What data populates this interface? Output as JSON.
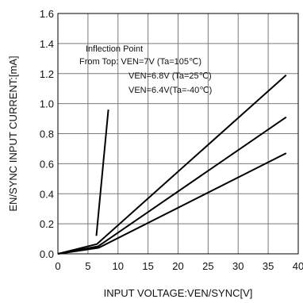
{
  "chart_data": {
    "type": "line",
    "xlabel": "INPUT VOLTAGE:VEN/SYNC[V]",
    "ylabel": "EN/SYNC INPUT CURRENT:[mA]",
    "xlim": [
      0,
      40
    ],
    "ylim": [
      0,
      1.6
    ],
    "xticks": [
      "0",
      "5",
      "10",
      "15",
      "20",
      "25",
      "30",
      "35",
      "40"
    ],
    "yticks": [
      "0.0",
      "0.2",
      "0.4",
      "0.6",
      "0.8",
      "1.0",
      "1.2",
      "1.4",
      "1.6"
    ],
    "grid": true,
    "series": [
      {
        "x": [
          0,
          6.5,
          38
        ],
        "y": [
          0,
          0.065,
          1.19
        ]
      },
      {
        "x": [
          0,
          6.7,
          38
        ],
        "y": [
          0,
          0.05,
          0.91
        ]
      },
      {
        "x": [
          0,
          6.8,
          38
        ],
        "y": [
          0,
          0.04,
          0.67
        ]
      },
      {
        "x": [
          6.4,
          8.4
        ],
        "y": [
          0.12,
          0.96
        ]
      }
    ],
    "annotations": [
      "Inflection Point",
      "From Top: VEN=7V (Ta=105℃)",
      "VEN=6.8V (Ta=25℃)",
      "VEN=6.4V(Ta=-40℃)"
    ]
  }
}
